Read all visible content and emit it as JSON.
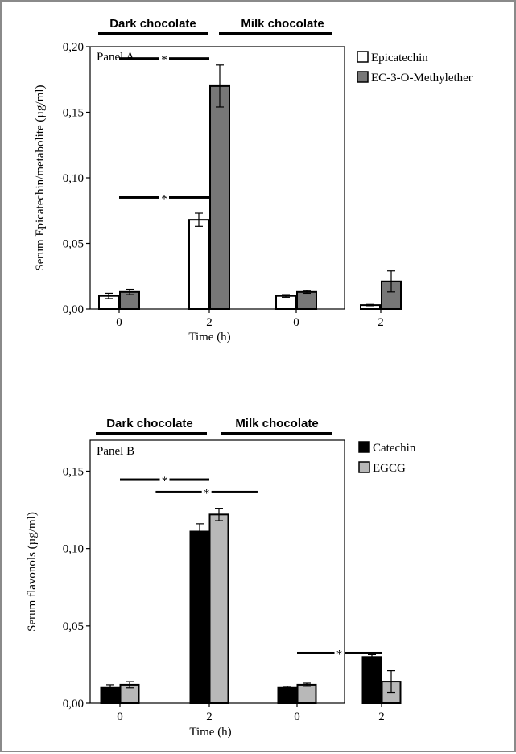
{
  "chart_data": [
    {
      "type": "bar",
      "panel_label": "Panel A",
      "group_labels": [
        "Dark chocolate",
        "Milk chocolate"
      ],
      "categories": [
        "0",
        "2",
        "0",
        "2"
      ],
      "xlabel": "Time (h)",
      "ylabel": "Serum Epicatechin/metabolite (µg/ml)",
      "ylim": [
        0,
        0.2
      ],
      "yticks": [
        0,
        0.05,
        0.1,
        0.15,
        0.2
      ],
      "ytick_labels": [
        "0,00",
        "0,05",
        "0,10",
        "0,15",
        "0,20"
      ],
      "series": [
        {
          "name": "Epicatechin",
          "color": "#ffffff",
          "values": [
            0.01,
            0.068,
            0.01,
            0.003
          ],
          "errors": [
            0.002,
            0.005,
            0.001,
            0.0005
          ]
        },
        {
          "name": "EC-3-O-Methylether",
          "color": "#777777",
          "values": [
            0.013,
            0.17,
            0.013,
            0.021
          ],
          "errors": [
            0.002,
            0.016,
            0.001,
            0.008
          ]
        }
      ],
      "significance": [
        {
          "label": "*",
          "x_from_category": 0,
          "x_to_category": 1,
          "y": 0.085
        },
        {
          "label": "*",
          "x_from_category": 0,
          "x_to_category": 1,
          "y": 0.191
        }
      ],
      "legend_position": "right"
    },
    {
      "type": "bar",
      "panel_label": "Panel B",
      "group_labels": [
        "Dark chocolate",
        "Milk chocolate"
      ],
      "categories": [
        "0",
        "2",
        "0",
        "2"
      ],
      "xlabel": "Time (h)",
      "ylabel": "Serum flavonols (µg/ml)",
      "ylim": [
        0,
        0.17
      ],
      "yticks": [
        0,
        0.05,
        0.1,
        0.15
      ],
      "ytick_labels": [
        "0,00",
        "0,05",
        "0,10",
        "0,15"
      ],
      "series": [
        {
          "name": "Catechin",
          "color": "#000000",
          "values": [
            0.01,
            0.111,
            0.01,
            0.03
          ],
          "errors": [
            0.002,
            0.005,
            0.001,
            0.0015
          ]
        },
        {
          "name": "EGCG",
          "color": "#b8b8b8",
          "values": [
            0.012,
            0.122,
            0.012,
            0.014
          ],
          "errors": [
            0.002,
            0.004,
            0.001,
            0.007
          ]
        }
      ],
      "significance": [
        {
          "label": "*",
          "x_from_category": 0,
          "x_to_category": 1,
          "y": 0.1445
        },
        {
          "label": "*",
          "x_from_category": 0.4,
          "x_to_category": 1.55,
          "y": 0.1365
        },
        {
          "label": "*",
          "x_from_category": 2,
          "x_to_category": 3,
          "y": 0.0325
        }
      ],
      "legend_position": "right"
    }
  ]
}
